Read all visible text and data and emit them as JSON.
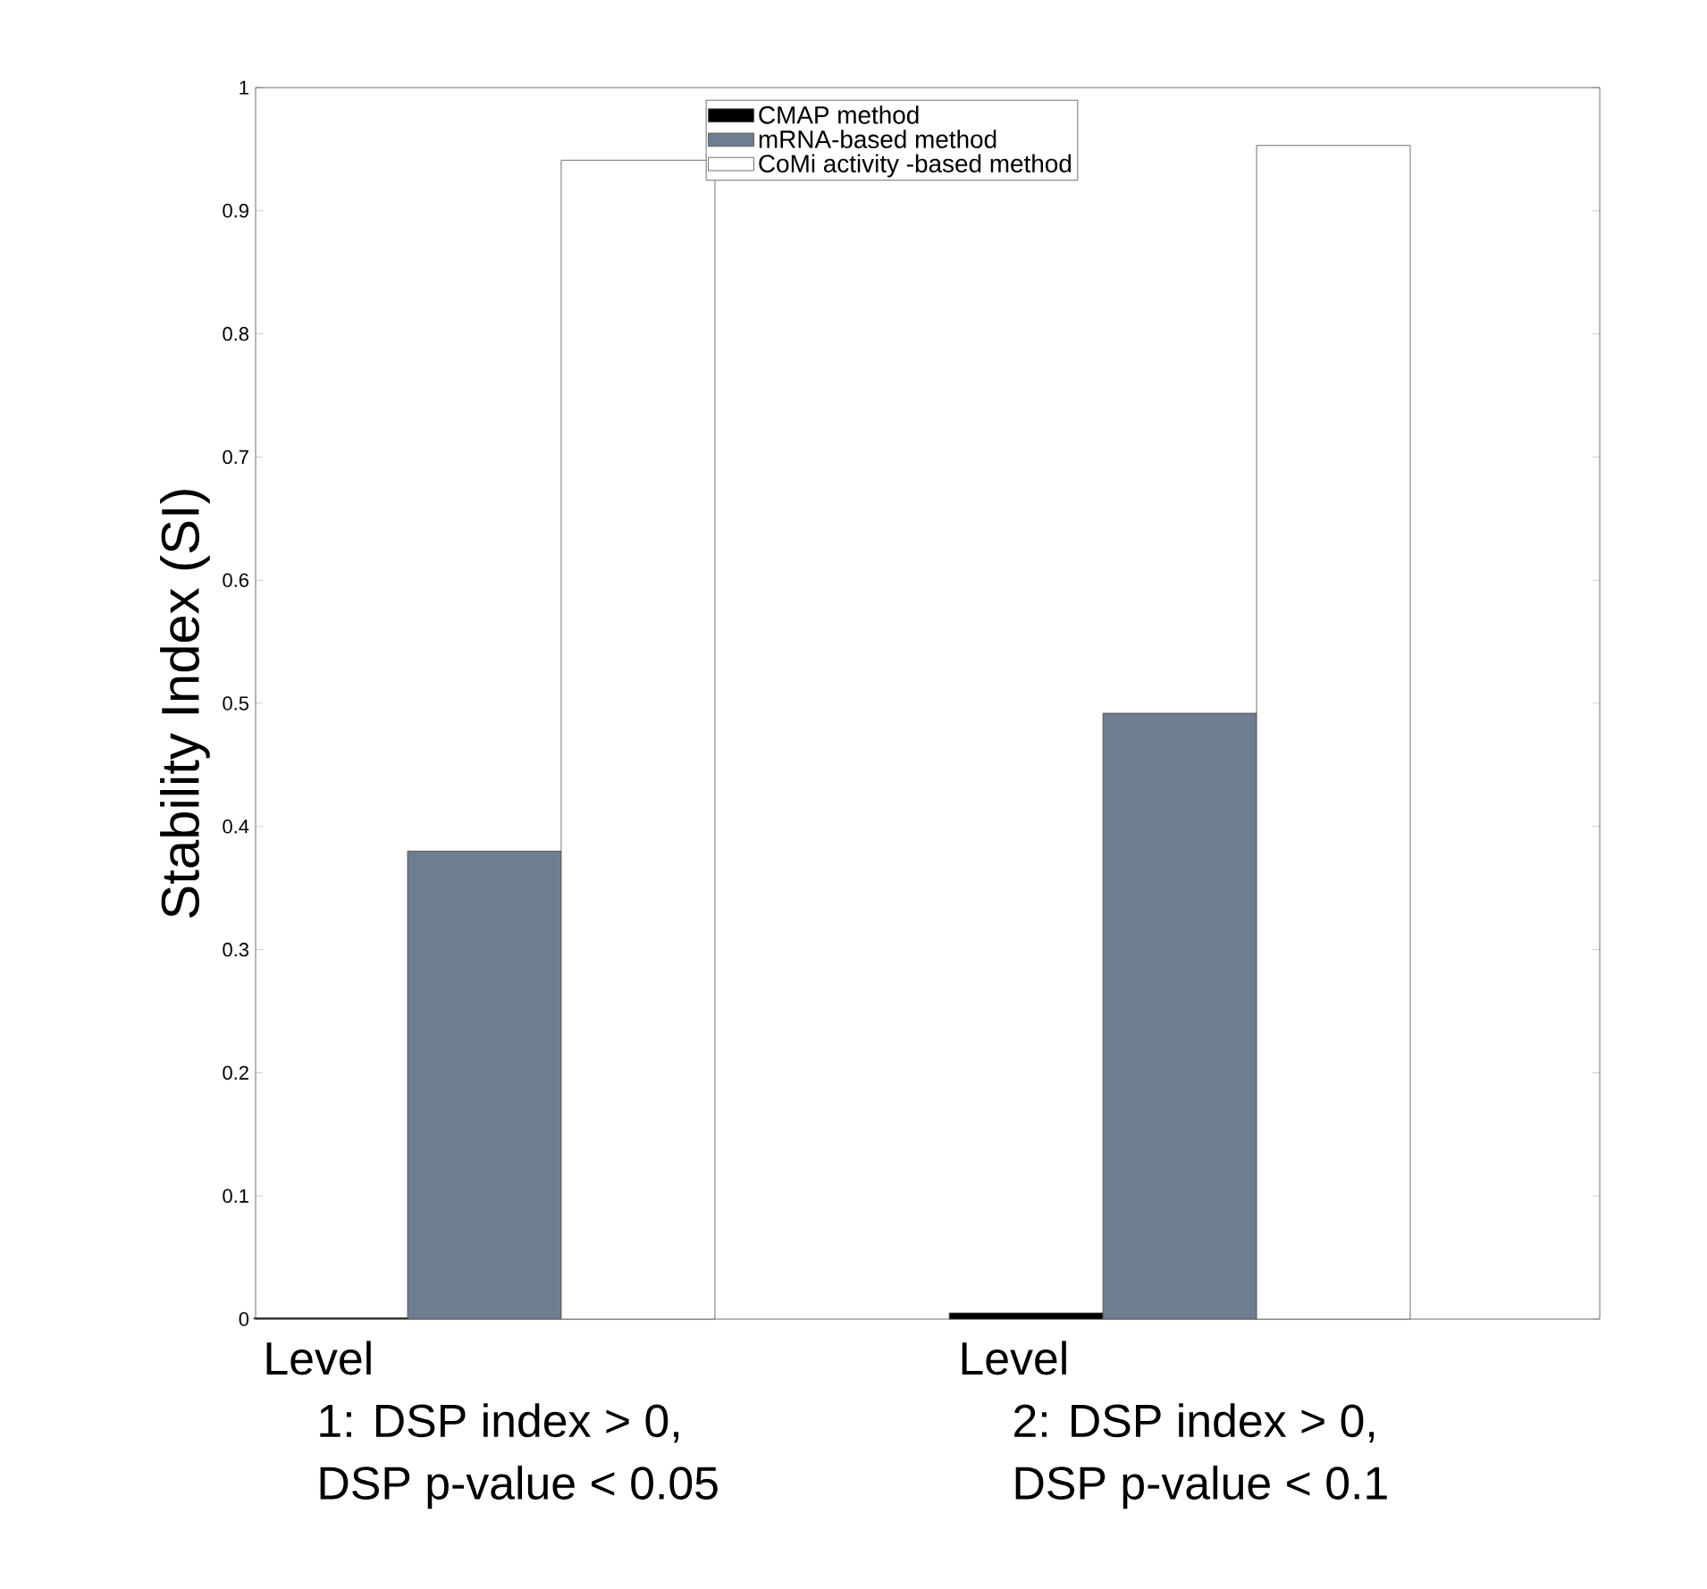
{
  "chart_data": {
    "type": "bar",
    "ylabel": "Stability Index (SI)",
    "categories": [
      "Level 1: DSP index > 0, DSP p-value < 0.05",
      "Level 2: DSP index > 0, DSP p-value < 0.1"
    ],
    "series": [
      {
        "name": "CMAP method",
        "color": "#000000",
        "values": [
          0.001,
          0.005
        ]
      },
      {
        "name": "mRNA-based method",
        "color": "#6e7d91",
        "values": [
          0.38,
          0.492
        ]
      },
      {
        "name": "CoMi activity -based method",
        "color": "#ffffff",
        "values": [
          0.941,
          0.953
        ]
      }
    ],
    "ylim": [
      0,
      1
    ],
    "yticks": [
      0,
      0.1,
      0.2,
      0.3,
      0.4,
      0.5,
      0.6,
      0.7,
      0.8,
      0.9,
      1
    ],
    "legend": "top",
    "grid": false
  }
}
